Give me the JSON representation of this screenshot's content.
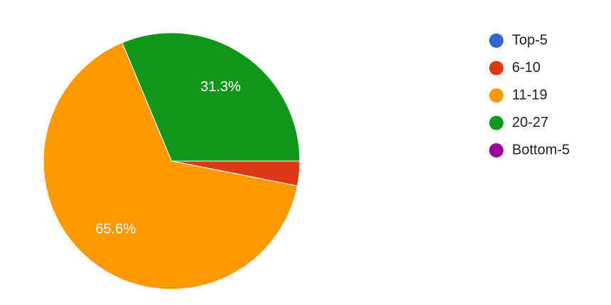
{
  "chart_data": {
    "type": "pie",
    "categories": [
      "Top-5",
      "6-10",
      "11-19",
      "20-27",
      "Bottom-5"
    ],
    "values": [
      0,
      3.1,
      65.6,
      31.3,
      0
    ],
    "value_labels": [
      null,
      null,
      "65.6%",
      "31.3%",
      null
    ],
    "colors": [
      "#3366cc",
      "#dc3912",
      "#ff9900",
      "#109618",
      "#990099"
    ],
    "legend": "right"
  }
}
